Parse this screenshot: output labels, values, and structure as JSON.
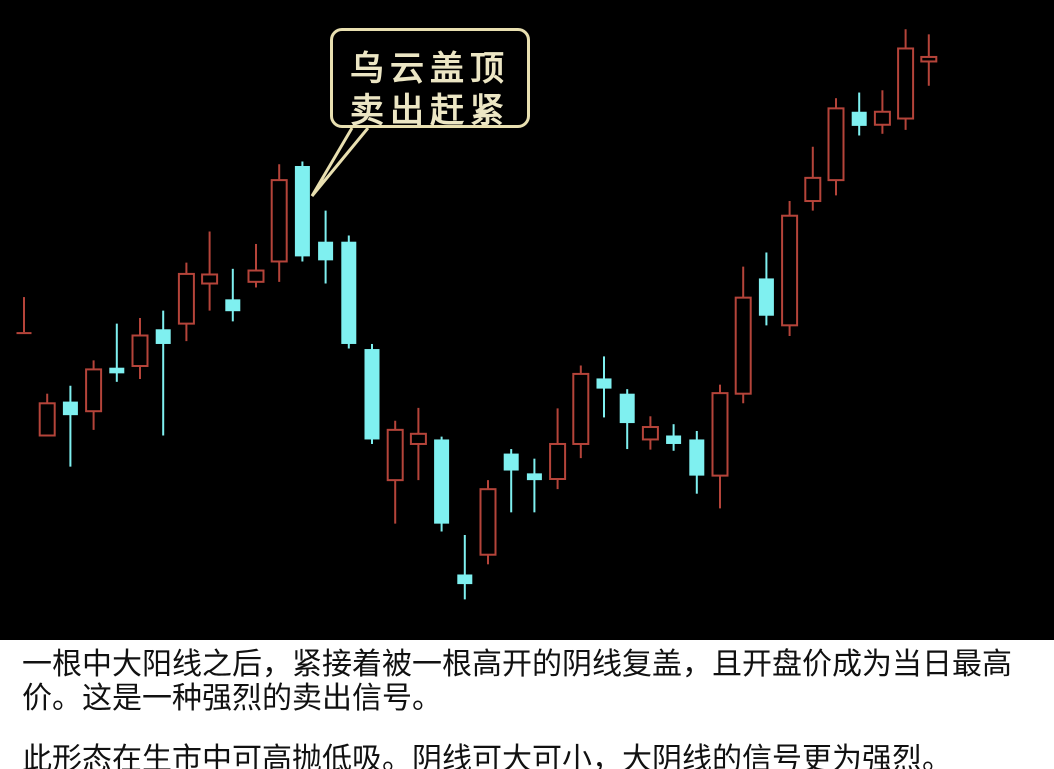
{
  "callout": {
    "line1": "乌云盖顶",
    "line2": "卖出赶紧"
  },
  "caption": {
    "line1": " 一根中大阳线之后，紧接着被一根高开的阴线复盖，且开盘价成为当日最高",
    "line2": "价。这是一种强烈的卖出信号。",
    "line3": "此形态在生市中可高抛低吸。阴线可大可小，大阴线的信号更为强烈。"
  },
  "colors": {
    "up": "#b5443a",
    "down": "#7ff0f0",
    "background": "#000000",
    "callout": "#e8dfb0"
  },
  "chart_data": {
    "type": "candlestick",
    "ylim": [
      0,
      100
    ],
    "grid": false,
    "candles": [
      {
        "open": 48.3,
        "close": 48.3,
        "high": 54.5,
        "low": 48.3
      },
      {
        "open": 30.0,
        "close": 35.7,
        "high": 37.4,
        "low": 30.0
      },
      {
        "open": 36.0,
        "close": 33.6,
        "high": 38.8,
        "low": 24.5
      },
      {
        "open": 34.3,
        "close": 41.7,
        "high": 43.3,
        "low": 31.0
      },
      {
        "open": 42.0,
        "close": 41.0,
        "high": 49.8,
        "low": 39.5
      },
      {
        "open": 42.3,
        "close": 47.7,
        "high": 50.8,
        "low": 40.0
      },
      {
        "open": 48.8,
        "close": 46.2,
        "high": 52.1,
        "low": 30.0
      },
      {
        "open": 49.8,
        "close": 58.6,
        "high": 60.6,
        "low": 46.7
      },
      {
        "open": 56.9,
        "close": 58.5,
        "high": 66.1,
        "low": 52.1
      },
      {
        "open": 54.1,
        "close": 52.0,
        "high": 59.5,
        "low": 50.2
      },
      {
        "open": 57.2,
        "close": 59.2,
        "high": 63.9,
        "low": 56.2
      },
      {
        "open": 60.8,
        "close": 75.2,
        "high": 78.0,
        "low": 57.2
      },
      {
        "open": 77.7,
        "close": 61.7,
        "high": 78.5,
        "low": 60.8
      },
      {
        "open": 64.3,
        "close": 61.0,
        "high": 69.8,
        "low": 56.9
      },
      {
        "open": 64.3,
        "close": 46.2,
        "high": 65.4,
        "low": 45.4
      },
      {
        "open": 45.3,
        "close": 29.3,
        "high": 46.2,
        "low": 28.5
      },
      {
        "open": 22.1,
        "close": 31.0,
        "high": 32.6,
        "low": 14.4
      },
      {
        "open": 28.5,
        "close": 30.3,
        "high": 34.9,
        "low": 22.1
      },
      {
        "open": 29.3,
        "close": 14.4,
        "high": 29.8,
        "low": 13.0
      },
      {
        "open": 5.4,
        "close": 3.7,
        "high": 12.4,
        "low": 1.0
      },
      {
        "open": 8.9,
        "close": 20.5,
        "high": 22.1,
        "low": 7.2
      },
      {
        "open": 26.8,
        "close": 23.8,
        "high": 27.6,
        "low": 16.4
      },
      {
        "open": 23.3,
        "close": 22.1,
        "high": 25.9,
        "low": 16.4
      },
      {
        "open": 22.3,
        "close": 28.5,
        "high": 34.8,
        "low": 20.5
      },
      {
        "open": 28.5,
        "close": 40.9,
        "high": 42.4,
        "low": 26.0
      },
      {
        "open": 40.1,
        "close": 38.3,
        "high": 44.0,
        "low": 33.2
      },
      {
        "open": 37.4,
        "close": 32.2,
        "high": 38.2,
        "low": 27.6
      },
      {
        "open": 29.3,
        "close": 31.5,
        "high": 33.4,
        "low": 27.5
      },
      {
        "open": 30.0,
        "close": 28.5,
        "high": 32.0,
        "low": 27.3
      },
      {
        "open": 29.3,
        "close": 22.9,
        "high": 30.8,
        "low": 19.7
      },
      {
        "open": 22.9,
        "close": 37.5,
        "high": 39.0,
        "low": 17.1
      },
      {
        "open": 37.4,
        "close": 54.4,
        "high": 59.9,
        "low": 35.7
      },
      {
        "open": 57.8,
        "close": 51.2,
        "high": 62.4,
        "low": 49.5
      },
      {
        "open": 49.5,
        "close": 68.9,
        "high": 71.5,
        "low": 47.6
      },
      {
        "open": 71.5,
        "close": 75.6,
        "high": 81.1,
        "low": 69.8
      },
      {
        "open": 75.2,
        "close": 87.9,
        "high": 89.7,
        "low": 72.5
      },
      {
        "open": 87.3,
        "close": 84.8,
        "high": 90.7,
        "low": 83.1
      },
      {
        "open": 85.0,
        "close": 87.3,
        "high": 91.1,
        "low": 83.4
      },
      {
        "open": 86.1,
        "close": 98.5,
        "high": 101.9,
        "low": 84.1
      },
      {
        "open": 96.2,
        "close": 97.0,
        "high": 101.0,
        "low": 91.9
      }
    ]
  }
}
